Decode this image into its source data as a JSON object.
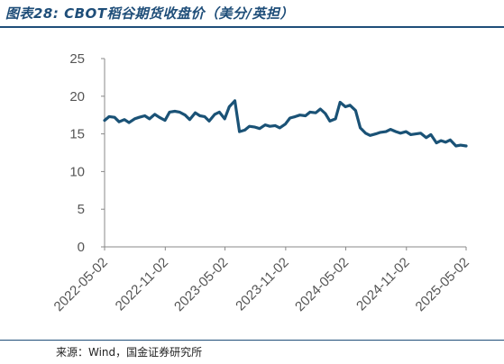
{
  "title": "图表28: CBOT稻谷期货收盘价（美分/英担）",
  "source": "来源：Wind，国金证券研究所",
  "colors": {
    "line": "#1a5276",
    "title": "#1f4e79",
    "axis": "#888888",
    "tick": "#555555"
  },
  "chart_data": {
    "type": "line",
    "title": "",
    "xlabel": "",
    "ylabel": "",
    "ylim": [
      0,
      25
    ],
    "yticks": [
      0,
      5,
      10,
      15,
      20,
      25
    ],
    "xlim": [
      "2022-05-02",
      "2025-05-02"
    ],
    "xticks": [
      "2022-05-02",
      "2022-11-02",
      "2023-05-02",
      "2023-11-02",
      "2024-05-02",
      "2024-11-02",
      "2025-05-02"
    ],
    "grid": false,
    "legend": "none",
    "series": [
      {
        "x": [
          "2022-05-02",
          "2022-05-16",
          "2022-06-01",
          "2022-06-15",
          "2022-07-01",
          "2022-07-15",
          "2022-08-01",
          "2022-08-15",
          "2022-09-01",
          "2022-09-15",
          "2022-10-01",
          "2022-10-15",
          "2022-11-01",
          "2022-11-15",
          "2022-12-01",
          "2022-12-15",
          "2023-01-01",
          "2023-01-15",
          "2023-02-01",
          "2023-02-15",
          "2023-03-01",
          "2023-03-15",
          "2023-04-01",
          "2023-04-15",
          "2023-05-01",
          "2023-05-15",
          "2023-06-01",
          "2023-06-15",
          "2023-07-01",
          "2023-07-15",
          "2023-08-01",
          "2023-08-15",
          "2023-09-01",
          "2023-09-15",
          "2023-10-01",
          "2023-10-15",
          "2023-11-01",
          "2023-11-15",
          "2023-12-01",
          "2023-12-15",
          "2024-01-01",
          "2024-01-15",
          "2024-02-01",
          "2024-02-15",
          "2024-03-01",
          "2024-03-15",
          "2024-04-01",
          "2024-04-15",
          "2024-05-01",
          "2024-05-15",
          "2024-06-01",
          "2024-06-15",
          "2024-07-01",
          "2024-07-15",
          "2024-08-01",
          "2024-08-15",
          "2024-09-01",
          "2024-09-15",
          "2024-10-01",
          "2024-10-15",
          "2024-11-01",
          "2024-11-15",
          "2024-12-01",
          "2024-12-15",
          "2025-01-01",
          "2025-01-15",
          "2025-02-01",
          "2025-02-15",
          "2025-03-01",
          "2025-03-15",
          "2025-04-01",
          "2025-04-15",
          "2025-05-02"
        ],
        "values": [
          16.8,
          17.3,
          17.2,
          16.6,
          16.9,
          16.5,
          17.0,
          17.2,
          17.4,
          17.0,
          17.6,
          17.2,
          16.8,
          17.9,
          18.0,
          17.9,
          17.5,
          16.9,
          17.8,
          17.4,
          17.3,
          16.7,
          17.6,
          17.9,
          17.0,
          18.6,
          19.4,
          15.3,
          15.5,
          16.0,
          15.9,
          15.7,
          16.2,
          16.0,
          16.1,
          15.8,
          16.3,
          17.1,
          17.3,
          17.5,
          17.4,
          17.9,
          17.8,
          18.3,
          17.7,
          16.7,
          17.0,
          19.2,
          18.6,
          18.8,
          18.1,
          15.8,
          15.1,
          14.8,
          15.0,
          15.2,
          15.3,
          15.6,
          15.3,
          15.1,
          15.3,
          14.9,
          15.0,
          15.1,
          14.5,
          14.9,
          13.8,
          14.1,
          13.9,
          14.2,
          13.4,
          13.5,
          13.4
        ]
      }
    ]
  }
}
